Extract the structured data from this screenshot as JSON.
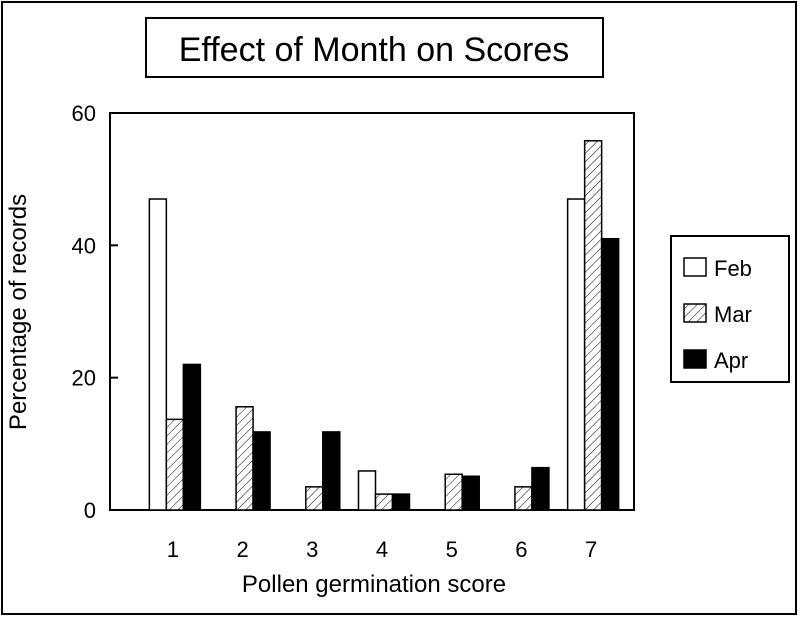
{
  "chart_data": {
    "type": "bar",
    "title": "Effect of Month on Scores",
    "xlabel": "Pollen germination score",
    "ylabel": "Percentage of records",
    "categories": [
      "1",
      "2",
      "3",
      "4",
      "5",
      "6",
      "7"
    ],
    "ylim": [
      0,
      60
    ],
    "yticks": [
      "0",
      "20",
      "40",
      "60"
    ],
    "grid": false,
    "legend_position": "right",
    "series": [
      {
        "name": "Feb",
        "values": [
          47,
          0,
          0,
          5.9,
          0,
          0,
          47
        ],
        "fill": "white"
      },
      {
        "name": "Mar",
        "values": [
          13.7,
          15.6,
          3.5,
          2.4,
          5.4,
          3.5,
          55.8
        ],
        "fill": "hatched"
      },
      {
        "name": "Apr",
        "values": [
          22,
          11.8,
          11.8,
          2.4,
          5.1,
          6.4,
          41
        ],
        "fill": "black"
      }
    ],
    "colors": {
      "background": "#ffffff",
      "ink": "#000000"
    }
  }
}
